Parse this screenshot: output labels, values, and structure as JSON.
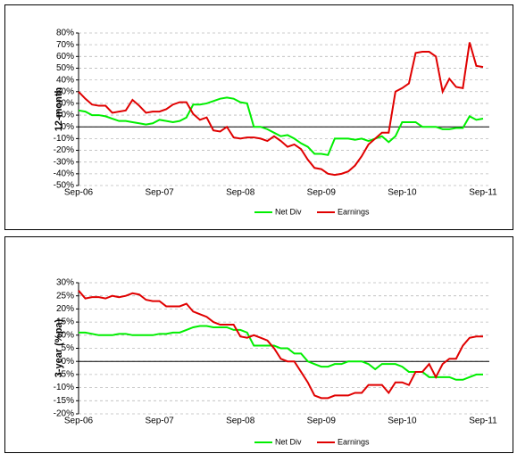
{
  "chart_data": [
    {
      "type": "line",
      "y_label": "12-month",
      "ylim": [
        -50,
        80
      ],
      "yticks": [
        {
          "value": -50,
          "label": "-50%"
        },
        {
          "value": -40,
          "label": "-40%"
        },
        {
          "value": -30,
          "label": "-30%"
        },
        {
          "value": -20,
          "label": "-20%"
        },
        {
          "value": -10,
          "label": "-10%"
        },
        {
          "value": 0,
          "label": "0%"
        },
        {
          "value": 10,
          "label": "10%"
        },
        {
          "value": 20,
          "label": "20%"
        },
        {
          "value": 30,
          "label": "30%"
        },
        {
          "value": 40,
          "label": "40%"
        },
        {
          "value": 50,
          "label": "50%"
        },
        {
          "value": 60,
          "label": "60%"
        },
        {
          "value": 70,
          "label": "70%"
        },
        {
          "value": 80,
          "label": "80%"
        }
      ],
      "grid": true,
      "legend": "bottom",
      "categories": [
        "Sep-06",
        null,
        null,
        null,
        null,
        null,
        null,
        null,
        null,
        null,
        null,
        null,
        "Sep-07",
        null,
        null,
        null,
        null,
        null,
        null,
        null,
        null,
        null,
        null,
        null,
        "Sep-08",
        null,
        null,
        null,
        null,
        null,
        null,
        null,
        null,
        null,
        null,
        null,
        "Sep-09",
        null,
        null,
        null,
        null,
        null,
        null,
        null,
        null,
        null,
        null,
        null,
        "Sep-10",
        null,
        null,
        null,
        null,
        null,
        null,
        null,
        null,
        null,
        null,
        null,
        "Sep-11"
      ],
      "series": [
        {
          "name": "Net Div",
          "color": "#00ee00",
          "values": [
            14,
            13,
            10,
            10,
            9,
            7,
            5,
            5,
            4,
            3,
            2,
            3,
            6,
            5,
            4,
            5,
            8,
            19,
            19,
            20,
            22,
            24,
            25,
            24,
            21,
            20,
            0,
            0,
            -2,
            -5,
            -8,
            -7,
            -10,
            -14,
            -17,
            -23,
            -23,
            -24,
            -10,
            -10,
            -10,
            -11,
            -10,
            -12,
            -10,
            -8,
            -13,
            -8,
            4,
            4,
            4,
            0,
            0,
            0,
            -2,
            -2,
            -1,
            -1,
            9,
            6,
            7
          ]
        },
        {
          "name": "Earnings",
          "color": "#e00000",
          "values": [
            30,
            24,
            19,
            18,
            18,
            12,
            13,
            14,
            23,
            18,
            12,
            13,
            13,
            15,
            19,
            21,
            21,
            11,
            6,
            8,
            -3,
            -4,
            0,
            -9,
            -10,
            -9,
            -9,
            -10,
            -12,
            -8,
            -12,
            -17,
            -15,
            -19,
            -28,
            -35,
            -36,
            -40,
            -41,
            -40,
            -38,
            -33,
            -25,
            -15,
            -10,
            -5,
            -5,
            30,
            33,
            37,
            63,
            64,
            64,
            60,
            30,
            41,
            34,
            33,
            72,
            52,
            51
          ]
        }
      ]
    },
    {
      "type": "line",
      "y_label": "3-year (%pa)",
      "ylim": [
        -20,
        30
      ],
      "yticks": [
        {
          "value": -20,
          "label": "-20%"
        },
        {
          "value": -15,
          "label": "-15%"
        },
        {
          "value": -10,
          "label": "-10%"
        },
        {
          "value": -5,
          "label": "-5%"
        },
        {
          "value": 0,
          "label": "0%"
        },
        {
          "value": 5,
          "label": "5%"
        },
        {
          "value": 10,
          "label": "10%"
        },
        {
          "value": 15,
          "label": "15%"
        },
        {
          "value": 20,
          "label": "20%"
        },
        {
          "value": 25,
          "label": "25%"
        },
        {
          "value": 30,
          "label": "30%"
        }
      ],
      "grid": true,
      "legend": "bottom",
      "categories": [
        "Sep-06",
        null,
        null,
        null,
        null,
        null,
        null,
        null,
        null,
        null,
        null,
        null,
        "Sep-07",
        null,
        null,
        null,
        null,
        null,
        null,
        null,
        null,
        null,
        null,
        null,
        "Sep-08",
        null,
        null,
        null,
        null,
        null,
        null,
        null,
        null,
        null,
        null,
        null,
        "Sep-09",
        null,
        null,
        null,
        null,
        null,
        null,
        null,
        null,
        null,
        null,
        null,
        "Sep-10",
        null,
        null,
        null,
        null,
        null,
        null,
        null,
        null,
        null,
        null,
        null,
        "Sep-11"
      ],
      "series": [
        {
          "name": "Net Div",
          "color": "#00ee00",
          "values": [
            11,
            11,
            10.5,
            10,
            10,
            10,
            10.5,
            10.5,
            10,
            10,
            10,
            10,
            10.5,
            10.5,
            11,
            11,
            12,
            13,
            13.5,
            13.5,
            13,
            13,
            13,
            12,
            12,
            11,
            6,
            6,
            6,
            6,
            5,
            5,
            3,
            3,
            0,
            -1,
            -2,
            -2,
            -1,
            -1,
            0,
            0,
            0,
            -1,
            -3,
            -1,
            -1,
            -1,
            -2,
            -4,
            -4,
            -4,
            -6,
            -6,
            -6,
            -6,
            -7,
            -7,
            -6,
            -5,
            -5
          ]
        },
        {
          "name": "Earnings",
          "color": "#e00000",
          "values": [
            27,
            24,
            24.5,
            24.5,
            24,
            25,
            24.5,
            25,
            26,
            25.5,
            23.5,
            23,
            23,
            21,
            21,
            21,
            22,
            19,
            18,
            17,
            15,
            14,
            14,
            14,
            9.5,
            9,
            10,
            9,
            8,
            5,
            1,
            0,
            0,
            -4,
            -8,
            -13,
            -14,
            -14,
            -13,
            -13,
            -13,
            -12,
            -12,
            -9,
            -9,
            -9,
            -12,
            -8,
            -8,
            -9,
            -4,
            -4,
            -1,
            -6,
            -1,
            1,
            1,
            6,
            9,
            9.5,
            9.5
          ]
        }
      ]
    }
  ]
}
